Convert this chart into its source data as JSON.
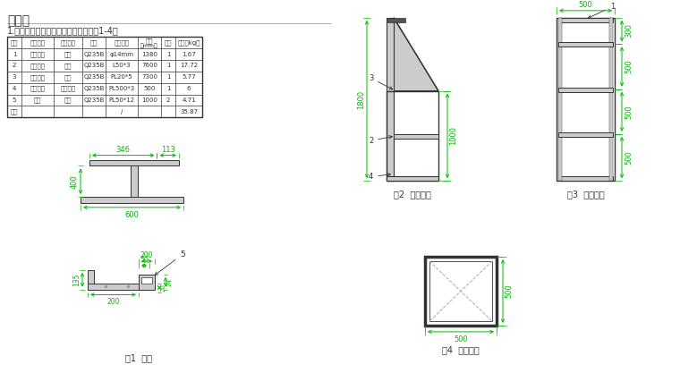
{
  "title": "说明：",
  "subtitle": "1.吊篮材料表如下表所示，尺寸详见图1-4。",
  "table_headers": [
    "编号",
    "组件名称",
    "材料类别",
    "材质",
    "材料规格",
    "长度\n（mm）",
    "数量",
    "重量（kg）"
  ],
  "table_rows": [
    [
      "1",
      "顶部杆件",
      "圆钢",
      "Q235B",
      "φ14mm",
      "1380",
      "1",
      "1.67"
    ],
    [
      "2",
      "四角支撑",
      "角钢",
      "Q235B",
      "L50*3",
      "7600",
      "1",
      "17.72"
    ],
    [
      "3",
      "侧向防护",
      "扁板",
      "Q235B",
      "PL20*5",
      "7300",
      "1",
      "5.77"
    ],
    [
      "4",
      "平台底部",
      "花纹钢板",
      "Q235B",
      "PL500*3",
      "500",
      "1",
      "6"
    ],
    [
      "5",
      "挂件",
      "钢板",
      "Q235B",
      "PL50*12",
      "1000",
      "2",
      "4.71"
    ],
    [
      "合计",
      "",
      "",
      "",
      "/",
      "",
      "",
      "35.87"
    ]
  ],
  "fig1_label": "图1  挂件",
  "fig2_label": "图2  吊篮侧视",
  "fig3_label": "图3  吊篮前视",
  "fig4_label": "图4  吊篮俯视",
  "dim_color": "#00bb00",
  "line_color": "#333333",
  "gray_color": "#999999",
  "fill_color": "#cccccc",
  "dark_fill": "#555555",
  "bg_color": "#ffffff"
}
